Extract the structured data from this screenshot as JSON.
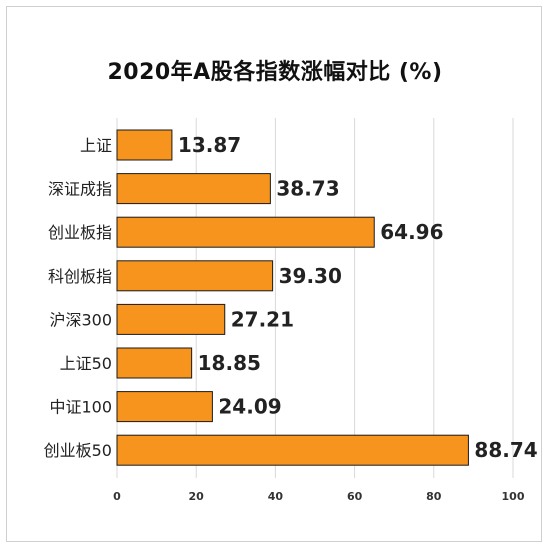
{
  "chart_data": {
    "type": "bar",
    "orientation": "horizontal",
    "title": "2020年A股各指数涨幅对比 (%)",
    "categories": [
      "上证",
      "深证成指",
      "创业板指",
      "科创板指",
      "沪深300",
      "上证50",
      "中证100",
      "创业板50"
    ],
    "values": [
      13.87,
      38.73,
      64.96,
      39.3,
      27.21,
      18.85,
      24.09,
      88.74
    ],
    "value_labels": [
      "13.87",
      "38.73",
      "64.96",
      "39.30",
      "27.21",
      "18.85",
      "24.09",
      "88.74"
    ],
    "xlim": [
      0,
      100
    ],
    "xticks": [
      0,
      20,
      40,
      60,
      80,
      100
    ],
    "grid": true,
    "colors": {
      "bar": "#F7941D",
      "bar_edge": "#1a1a1a",
      "grid": "#d9d9d9"
    }
  }
}
